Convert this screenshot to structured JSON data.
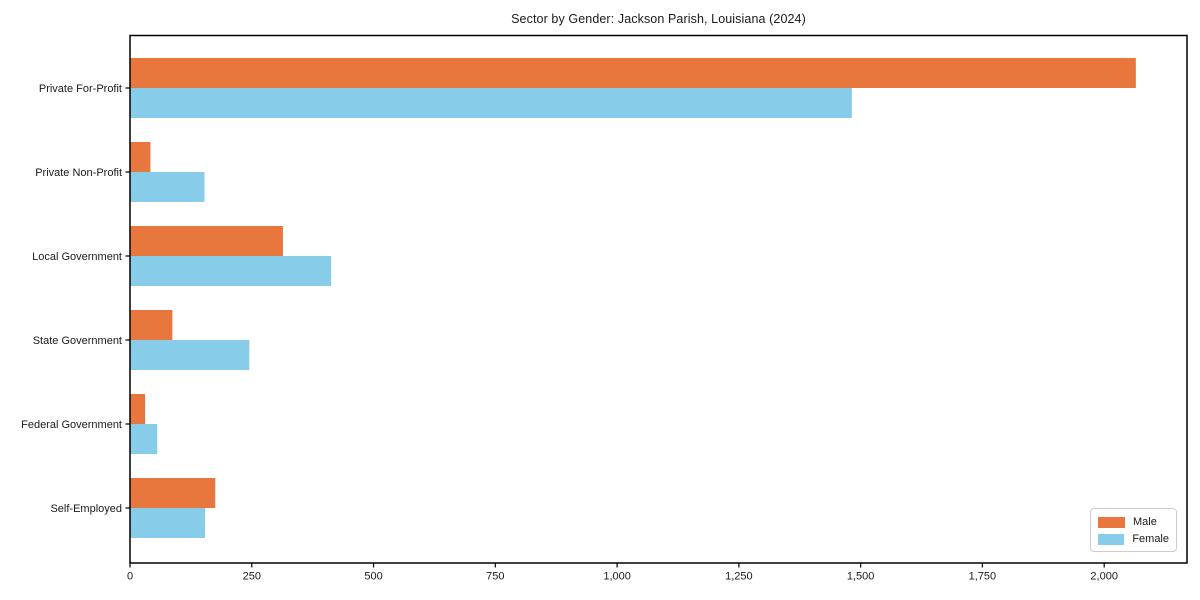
{
  "chart_data": {
    "type": "bar",
    "orientation": "horizontal",
    "title": "Sector by Gender: Jackson Parish, Louisiana (2024)",
    "categories": [
      "Private For-Profit",
      "Private Non-Profit",
      "Local Government",
      "State Government",
      "Federal Government",
      "Self-Employed"
    ],
    "series": [
      {
        "name": "Male",
        "color": "#e8773d",
        "values": [
          2065,
          42,
          314,
          87,
          31,
          175
        ]
      },
      {
        "name": "Female",
        "color": "#87cdea",
        "values": [
          1482,
          153,
          413,
          245,
          56,
          154
        ]
      }
    ],
    "xlabel": "",
    "ylabel": "",
    "xlim": [
      0,
      2170
    ],
    "xticks": [
      0,
      250,
      500,
      750,
      1000,
      1250,
      1500,
      1750,
      2000
    ],
    "xtick_labels": [
      "0",
      "250",
      "500",
      "750",
      "1,000",
      "1,250",
      "1,500",
      "1,750",
      "2,000"
    ],
    "grid": false,
    "legend_position": "lower-right",
    "frame_color": "#000000",
    "background_color": "#ffffff",
    "text_color": "#1a1a1a"
  }
}
